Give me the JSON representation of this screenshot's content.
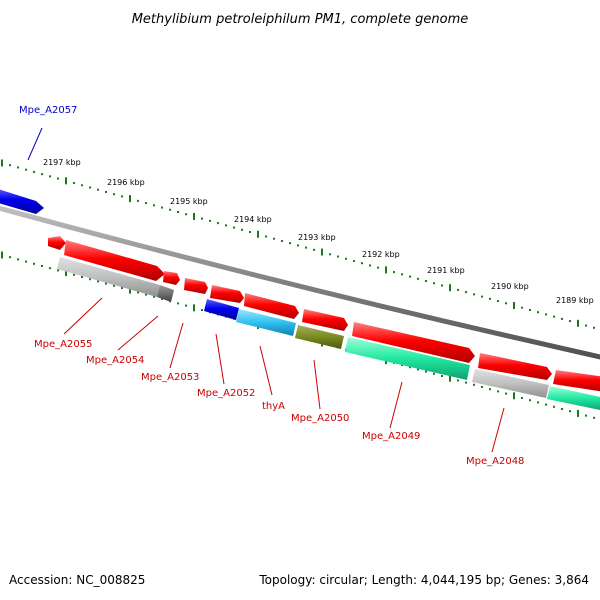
{
  "title": "Methylibium petroleiphilum PM1, complete genome",
  "footer": {
    "accession": "Accession: NC_008825",
    "summary": "Topology: circular; Length: 4,044,195 bp; Genes: 3,864"
  },
  "colors": {
    "gene_label": "#cc0000",
    "highlight_label": "#0000cc",
    "tick": "#1a7a1a",
    "backbone": "#808080",
    "gene_arrow": "#ff0000",
    "selected_gene": "#0000ee"
  },
  "scale": {
    "ticks": [
      {
        "label": "2197 kbp"
      },
      {
        "label": "2196 kbp"
      },
      {
        "label": "2195 kbp"
      },
      {
        "label": "2194 kbp"
      },
      {
        "label": "2193 kbp"
      },
      {
        "label": "2192 kbp"
      },
      {
        "label": "2191 kbp"
      },
      {
        "label": "2190 kbp"
      },
      {
        "label": "2189 kbp"
      }
    ]
  },
  "genes": [
    {
      "label": "Mpe_A2057",
      "highlight": true
    },
    {
      "label": "Mpe_A2055",
      "highlight": false
    },
    {
      "label": "Mpe_A2054",
      "highlight": false
    },
    {
      "label": "Mpe_A2053",
      "highlight": false
    },
    {
      "label": "Mpe_A2052",
      "highlight": false
    },
    {
      "label": "thyA",
      "highlight": false
    },
    {
      "label": "Mpe_A2050",
      "highlight": false
    },
    {
      "label": "Mpe_A2049",
      "highlight": false
    },
    {
      "label": "Mpe_A2048",
      "highlight": false
    }
  ]
}
